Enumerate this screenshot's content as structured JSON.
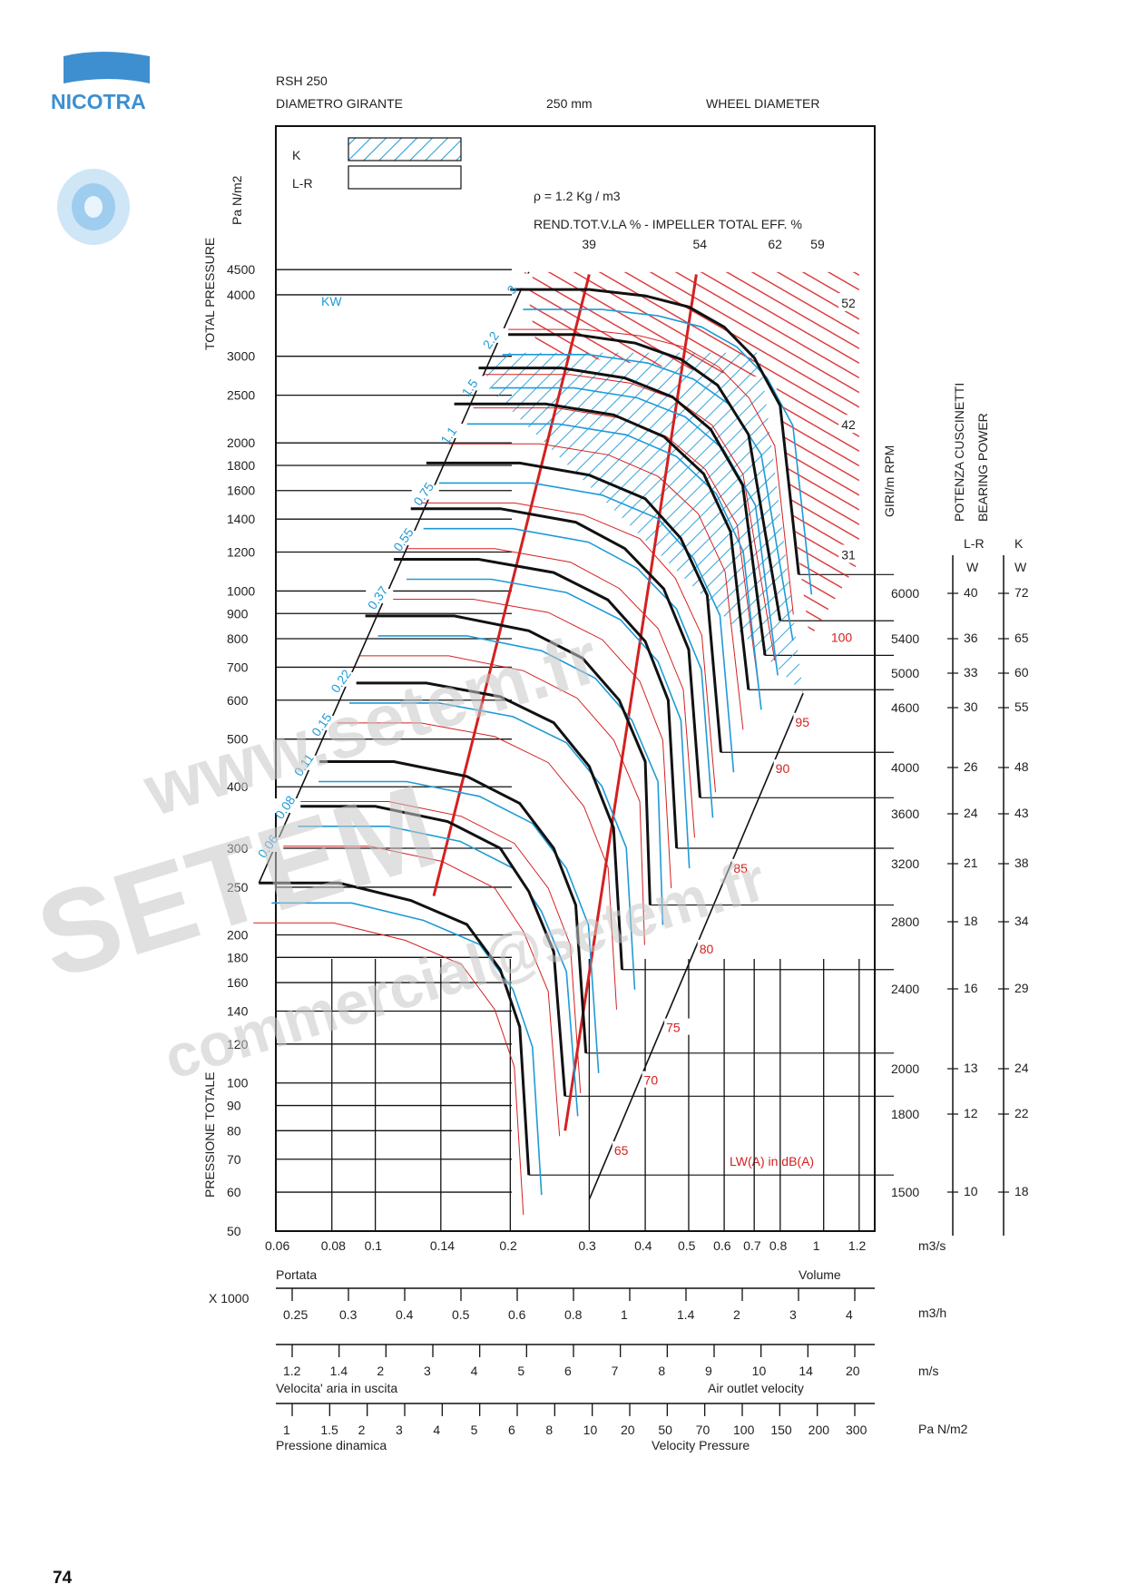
{
  "header": {
    "brand": "NICOTRA",
    "model": "RSH 250",
    "diameter_label_it": "DIAMETRO GIRANTE",
    "diameter_value": "250 mm",
    "diameter_label_en": "WHEEL DIAMETER"
  },
  "page_number": "74",
  "legend": {
    "k_label": "K",
    "lr_label": "L-R"
  },
  "density_label": "ρ  = 1.2 Kg / m3",
  "efficiency_label": "REND.TOT.V.LA % - IMPELLER TOTAL EFF. %",
  "efficiency_values": [
    "39",
    "54",
    "62",
    "59",
    "52",
    "42",
    "31"
  ],
  "kw_label": "KW",
  "lwa_label": "LW(A) in dB(A)",
  "y_axis": {
    "unit": "Pa N/m2",
    "title_en": "TOTAL PRESSURE",
    "title_it": "PRESSIONE TOTALE",
    "ticks": [
      "4500",
      "4000",
      "3000",
      "2500",
      "2000",
      "1800",
      "1600",
      "1400",
      "1200",
      "1000",
      "900",
      "800",
      "700",
      "600",
      "500",
      "400",
      "300",
      "250",
      "200",
      "180",
      "160",
      "140",
      "120",
      "100",
      "90",
      "80",
      "70",
      "60",
      "50"
    ]
  },
  "x_axis": {
    "ticks": [
      "0.06",
      "0.08",
      "0.1",
      "0.14",
      "0.2",
      "0.3",
      "0.4",
      "0.5",
      "0.6",
      "0.7",
      "0.8",
      "1",
      "1.2"
    ],
    "unit": "m3/s",
    "label_it": "Portata",
    "label_en": "Volume"
  },
  "scale_m3h": {
    "multiplier": "X 1000",
    "ticks": [
      "0.25",
      "0.3",
      "0.4",
      "0.5",
      "0.6",
      "0.8",
      "1",
      "1.4",
      "2",
      "3",
      "4"
    ],
    "unit": "m3/h"
  },
  "scale_velocity": {
    "ticks": [
      "1.2",
      "1.4",
      "2",
      "3",
      "4",
      "5",
      "6",
      "7",
      "8",
      "9",
      "10",
      "14",
      "20"
    ],
    "unit": "m/s",
    "label_it": "Velocita' aria in uscita",
    "label_en": "Air outlet velocity"
  },
  "scale_dynamic": {
    "ticks": [
      "1",
      "1.5",
      "2",
      "3",
      "4",
      "5",
      "6",
      "8",
      "10",
      "20",
      "50",
      "70",
      "100",
      "150",
      "200",
      "300"
    ],
    "unit": "Pa N/m2",
    "label_it": "Pressione dinamica",
    "label_en": "Velocity Pressure"
  },
  "rpm": {
    "title": "GIRI/m RPM",
    "values": [
      "6000",
      "5400",
      "5000",
      "4600",
      "4000",
      "3600",
      "3200",
      "2800",
      "2400",
      "2000",
      "1800",
      "1500"
    ]
  },
  "bearing": {
    "title_it": "POTENZA CUSCINETTI",
    "title_en": "BEARING POWER",
    "lr_header": "L-R",
    "k_header": "K",
    "unit": "W",
    "lr_values": [
      "40",
      "36",
      "33",
      "30",
      "26",
      "24",
      "21",
      "18",
      "16",
      "13",
      "12",
      "10"
    ],
    "k_values": [
      "72",
      "65",
      "60",
      "55",
      "48",
      "43",
      "38",
      "34",
      "29",
      "24",
      "22",
      "18"
    ]
  },
  "kw_values": [
    "3",
    "2.2",
    "1.5",
    "1.1",
    "0.75",
    "0.55",
    "0.37",
    "0.22",
    "0.15",
    "0.11",
    "0.08",
    "0.06"
  ],
  "db_values": [
    "100",
    "95",
    "90",
    "85",
    "80",
    "75",
    "70",
    "65"
  ],
  "watermark": {
    "line1": "www.setem.fr",
    "line2": "SETEM",
    "line3": "commercial@setem.fr"
  },
  "colors": {
    "blue": "#1f9ad6",
    "red": "#d42020",
    "black": "#111111",
    "logo": "#3d8fd0"
  },
  "chart_data": {
    "type": "line",
    "title": "RSH 250",
    "xlabel": "Portata / Volume (m3/s)",
    "ylabel": "Total pressure (Pa)",
    "x_scale": "log",
    "y_scale": "log",
    "xlim": [
      0.06,
      1.3
    ],
    "ylim": [
      50,
      4800
    ],
    "rpm_curves": [
      {
        "name": "6000",
        "x": [
          0.2,
          0.3,
          0.4,
          0.5,
          0.6,
          0.7,
          0.8,
          0.88
        ],
        "y": [
          4100,
          4100,
          3980,
          3780,
          3440,
          2980,
          2380,
          1080
        ]
      },
      {
        "name": "5400",
        "x": [
          0.18,
          0.28,
          0.38,
          0.48,
          0.58,
          0.68,
          0.8
        ],
        "y": [
          3320,
          3320,
          3190,
          2960,
          2620,
          2080,
          870
        ]
      },
      {
        "name": "5000",
        "x": [
          0.17,
          0.26,
          0.36,
          0.46,
          0.56,
          0.66,
          0.74
        ],
        "y": [
          2840,
          2840,
          2710,
          2480,
          2130,
          1640,
          740
        ]
      },
      {
        "name": "4600",
        "x": [
          0.15,
          0.24,
          0.34,
          0.44,
          0.54,
          0.62,
          0.68
        ],
        "y": [
          2400,
          2400,
          2280,
          2060,
          1730,
          1320,
          630
        ]
      },
      {
        "name": "4000",
        "x": [
          0.13,
          0.21,
          0.3,
          0.4,
          0.48,
          0.55,
          0.59
        ],
        "y": [
          1820,
          1820,
          1720,
          1540,
          1280,
          980,
          470
        ]
      },
      {
        "name": "3600",
        "x": [
          0.12,
          0.19,
          0.28,
          0.36,
          0.44,
          0.5,
          0.53
        ],
        "y": [
          1470,
          1470,
          1380,
          1220,
          1010,
          760,
          380
        ]
      },
      {
        "name": "3200",
        "x": [
          0.11,
          0.17,
          0.25,
          0.33,
          0.4,
          0.45,
          0.47
        ],
        "y": [
          1160,
          1160,
          1090,
          960,
          790,
          600,
          300
        ]
      },
      {
        "name": "2800",
        "x": [
          0.095,
          0.15,
          0.22,
          0.29,
          0.35,
          0.4,
          0.41
        ],
        "y": [
          890,
          890,
          830,
          730,
          600,
          450,
          230
        ]
      },
      {
        "name": "2400",
        "x": [
          0.082,
          0.13,
          0.19,
          0.25,
          0.3,
          0.34,
          0.355
        ],
        "y": [
          650,
          650,
          610,
          540,
          440,
          330,
          170
        ]
      },
      {
        "name": "2000",
        "x": [
          0.07,
          0.11,
          0.16,
          0.21,
          0.25,
          0.28,
          0.295
        ],
        "y": [
          450,
          450,
          420,
          370,
          300,
          230,
          115
        ]
      },
      {
        "name": "1800",
        "x": [
          0.063,
          0.1,
          0.145,
          0.19,
          0.22,
          0.25,
          0.265
        ],
        "y": [
          365,
          365,
          340,
          300,
          245,
          185,
          94
        ]
      },
      {
        "name": "1500",
        "x": [
          0.055,
          0.083,
          0.12,
          0.16,
          0.19,
          0.21,
          0.22
        ],
        "y": [
          255,
          255,
          235,
          210,
          170,
          130,
          65
        ]
      }
    ],
    "efficiency_lines": [
      {
        "name": "39",
        "x": [
          0.135,
          0.3
        ],
        "y": [
          240,
          4400
        ]
      },
      {
        "name": "54",
        "x": [
          0.265,
          0.52
        ],
        "y": [
          80,
          4400
        ]
      }
    ],
    "rpm_right_labels": [
      "6000",
      "5400",
      "5000",
      "4600",
      "4000",
      "3600",
      "3200",
      "2800",
      "2400",
      "2000",
      "1800",
      "1500"
    ]
  }
}
